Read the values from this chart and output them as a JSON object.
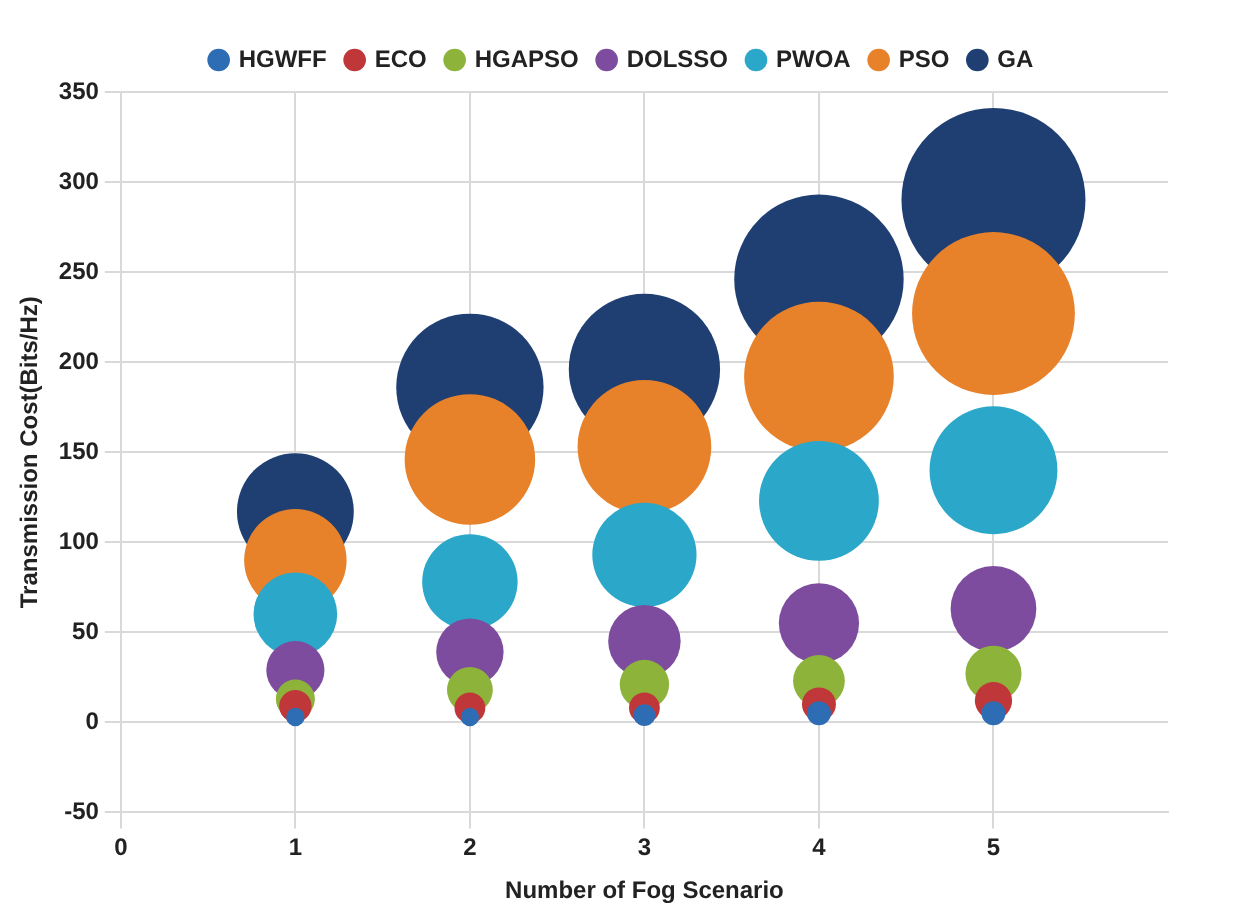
{
  "chart_data": {
    "type": "bubble",
    "xlabel": "Number of Fog Scenario",
    "ylabel": "Transmission Cost(Bits/Hz)",
    "x": [
      1,
      2,
      3,
      4,
      5
    ],
    "series": [
      {
        "name": "HGWFF",
        "color": "#2e6db4",
        "values": [
          3,
          3,
          4,
          5,
          5
        ],
        "sizes": [
          0.01,
          0.01,
          0.014,
          0.017,
          0.017
        ]
      },
      {
        "name": "ECO",
        "color": "#c0373a",
        "values": [
          9,
          8,
          8,
          10,
          12
        ],
        "sizes": [
          0.031,
          0.028,
          0.028,
          0.034,
          0.041
        ]
      },
      {
        "name": "HGAPSO",
        "color": "#8db33b",
        "values": [
          13,
          18,
          21,
          23,
          27
        ],
        "sizes": [
          0.045,
          0.062,
          0.072,
          0.079,
          0.093
        ]
      },
      {
        "name": "DOLSSO",
        "color": "#7d4c9e",
        "values": [
          29,
          39,
          45,
          55,
          63
        ],
        "sizes": [
          0.1,
          0.134,
          0.155,
          0.19,
          0.217
        ]
      },
      {
        "name": "PWOA",
        "color": "#2aa7c9",
        "values": [
          60,
          78,
          93,
          123,
          140
        ],
        "sizes": [
          0.207,
          0.269,
          0.321,
          0.424,
          0.483
        ]
      },
      {
        "name": "PSO",
        "color": "#e8822a",
        "values": [
          90,
          146,
          153,
          192,
          227
        ],
        "sizes": [
          0.31,
          0.503,
          0.528,
          0.662,
          0.783
        ]
      },
      {
        "name": "GA",
        "color": "#1f3f73",
        "values": [
          117,
          186,
          196,
          246,
          290
        ],
        "sizes": [
          0.403,
          0.641,
          0.676,
          0.848,
          1
        ]
      }
    ],
    "xlim": [
      0,
      6
    ],
    "xticks": [
      0,
      1,
      2,
      3,
      4,
      5
    ],
    "ylim": [
      -50,
      350
    ],
    "yticks": [
      -50,
      0,
      50,
      100,
      150,
      200,
      250,
      300,
      350
    ],
    "grid": true,
    "legend": "top"
  }
}
